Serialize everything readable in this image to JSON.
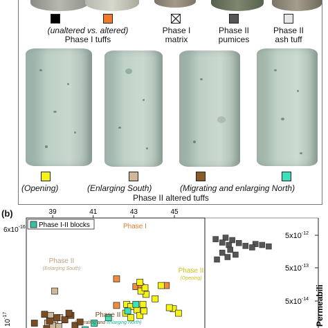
{
  "panel_a": {
    "label": "",
    "top_row": {
      "items": [
        {
          "color": "#000000",
          "label": "",
          "sublabel": ""
        },
        {
          "color": "#f07a2a",
          "label": "",
          "sublabel": ""
        },
        {
          "color": "#ffffff",
          "label": "Phase I",
          "sublabel": "matrix",
          "pattern": "cross"
        },
        {
          "color": "#555555",
          "label": "Phase II",
          "sublabel": "pumices"
        },
        {
          "color": "#e6e6e6",
          "label": "Phase II",
          "sublabel": "ash tuff"
        }
      ],
      "group_caption_italic": "(unaltered vs. altered)",
      "group_caption": "Phase I tuffs"
    },
    "bottom_row": {
      "items": [
        {
          "color": "#f5f21a",
          "caption": "(Opening)"
        },
        {
          "color": "#cfb89a",
          "caption": "(Enlarging South)"
        },
        {
          "color": "#8a5a2b",
          "caption": "(Migrating and enlarging North)"
        },
        {
          "color": "#3de0b8",
          "caption": ""
        }
      ],
      "group_caption": "Phase II altered tuffs"
    }
  },
  "panel_b": {
    "label": "(b)",
    "legend": "Phase I-II blocks",
    "left_axis_top_label": "6x10",
    "left_axis_top_exp": "-16",
    "left_axis_bottom_label": "10",
    "left_axis_bottom_exp": "-17",
    "right_axis_title": "Permeabili",
    "right_ticks": [
      {
        "base": "5x10",
        "exp": "-12"
      },
      {
        "base": "5x10",
        "exp": "-13"
      },
      {
        "base": "5x10",
        "exp": "-14"
      }
    ],
    "annotations": {
      "phase1": "Phase I",
      "phase2_south": "Phase II",
      "phase2_south_sub": "(Enlarging South)",
      "phase2_open": "Phase II",
      "phase2_open_sub": "(Opening)",
      "phase2_north": "Phase II",
      "phase2_north_sub": "(Migrating and enlarging North)"
    }
  },
  "chart_data": {
    "type": "scatter",
    "title": "",
    "xlabel": "",
    "ylabel": "",
    "x_ticks": [
      "39",
      "41",
      "43",
      "45"
    ],
    "xlim": [
      37.7,
      46.5
    ],
    "ylim": [
      0,
      1
    ],
    "colors": {
      "phase1": "#f08a3c",
      "opening": "#f5f21a",
      "enlarging_south": "#cfb89a",
      "migrating_north": "#7a4e22",
      "enlarging_north": "#3de0b8",
      "blocks": "#555555"
    },
    "series": [
      {
        "name": "Phase I",
        "color_key": "phase1",
        "points": [
          [
            42.15,
            0.55
          ],
          [
            43.1,
            0.62
          ],
          [
            43.35,
            0.62
          ],
          [
            43.5,
            0.66
          ],
          [
            44.6,
            0.61
          ],
          [
            42.15,
            0.79
          ]
        ]
      },
      {
        "name": "Phase II (Opening)",
        "color_key": "opening",
        "points": [
          [
            42.65,
            0.78
          ],
          [
            42.85,
            0.8
          ],
          [
            43.15,
            0.83
          ],
          [
            43.45,
            0.78
          ],
          [
            43.6,
            0.69
          ],
          [
            43.35,
            0.66
          ],
          [
            43.55,
            0.63
          ],
          [
            44.35,
            0.61
          ],
          [
            43.3,
            0.58
          ],
          [
            44.05,
            0.73
          ],
          [
            44.95,
            0.82
          ],
          [
            45.2,
            0.86
          ],
          [
            44.75,
            0.81
          ],
          [
            42.6,
            0.86
          ],
          [
            42.85,
            0.9
          ],
          [
            43.3,
            0.88
          ],
          [
            43.5,
            0.84
          ]
        ]
      },
      {
        "name": "Phase II (Enlarging South)",
        "color_key": "enlarging_south",
        "points": [
          [
            38.9,
            0.88
          ],
          [
            39.35,
            0.9
          ],
          [
            39.1,
            0.93
          ],
          [
            38.75,
            0.95
          ],
          [
            39.0,
            0.97
          ],
          [
            39.3,
            0.98
          ],
          [
            39.1,
            0.66
          ]
        ]
      },
      {
        "name": "Phase II (Migrating and enlarging North)",
        "color_key": "migrating_north",
        "points": [
          [
            38.1,
            0.95
          ],
          [
            38.6,
            0.87
          ],
          [
            38.85,
            0.93
          ],
          [
            39.2,
            0.9
          ],
          [
            39.6,
            0.92
          ],
          [
            39.9,
            0.88
          ],
          [
            40.1,
            0.97
          ],
          [
            40.35,
            0.94
          ],
          [
            39.8,
            0.86
          ],
          [
            38.7,
            1.0
          ]
        ]
      },
      {
        "name": "Phase II (Enlarging North)",
        "color_key": "enlarging_north",
        "points": [
          [
            40.6,
            1.01
          ],
          [
            41.05,
            0.95
          ],
          [
            41.75,
            0.9
          ],
          [
            42.7,
            0.84
          ],
          [
            43.1,
            0.78
          ]
        ]
      }
    ],
    "blocks_series": {
      "name": "Phase I-II blocks",
      "color_key": "blocks",
      "points": [
        [
          0.1,
          0.08
        ],
        [
          0.25,
          0.05
        ],
        [
          0.35,
          0.1
        ],
        [
          0.2,
          0.15
        ],
        [
          0.3,
          0.2
        ],
        [
          0.45,
          0.16
        ],
        [
          0.55,
          0.22
        ],
        [
          0.7,
          0.18
        ],
        [
          0.65,
          0.25
        ],
        [
          0.8,
          0.2
        ],
        [
          0.9,
          0.23
        ],
        [
          0.32,
          0.3
        ],
        [
          0.2,
          0.36
        ],
        [
          0.4,
          0.4
        ],
        [
          0.12,
          0.5
        ],
        [
          0.28,
          0.45
        ]
      ]
    }
  }
}
